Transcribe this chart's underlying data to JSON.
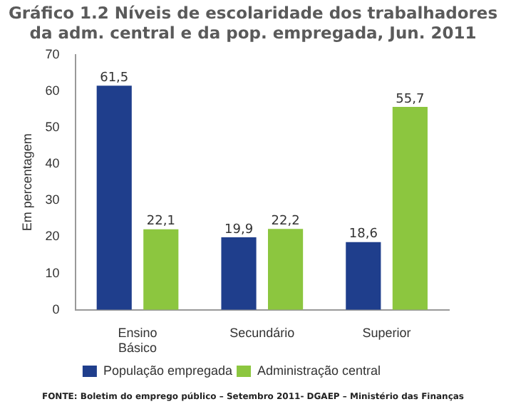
{
  "chart_data": {
    "type": "bar",
    "title": "Gráfico 1.2 Níveis de escolaridade dos trabalhadores da adm. central e da pop. empregada, Jun. 2011",
    "ylabel": "Em percentagem",
    "categories": [
      "Ensino Básico",
      "Secundário",
      "Superior"
    ],
    "series": [
      {
        "name": "População empregada",
        "color": "#1f3e8c",
        "values": [
          61.5,
          19.9,
          18.6
        ],
        "value_labels": [
          "61,5",
          "19,9",
          "18,6"
        ]
      },
      {
        "name": "Administração central",
        "color": "#8cc63f",
        "values": [
          22.1,
          22.2,
          55.7
        ],
        "value_labels": [
          "22,1",
          "22,2",
          "55,7"
        ]
      }
    ],
    "ylim": [
      0,
      70
    ],
    "yticks": [
      0,
      10,
      20,
      30,
      40,
      50,
      60,
      70
    ],
    "grid": false,
    "legend": "bottom",
    "annotations": [
      "FONTE: Boletim do emprego público – Setembro 2011- DGAEP – Ministério das Finanças"
    ]
  }
}
